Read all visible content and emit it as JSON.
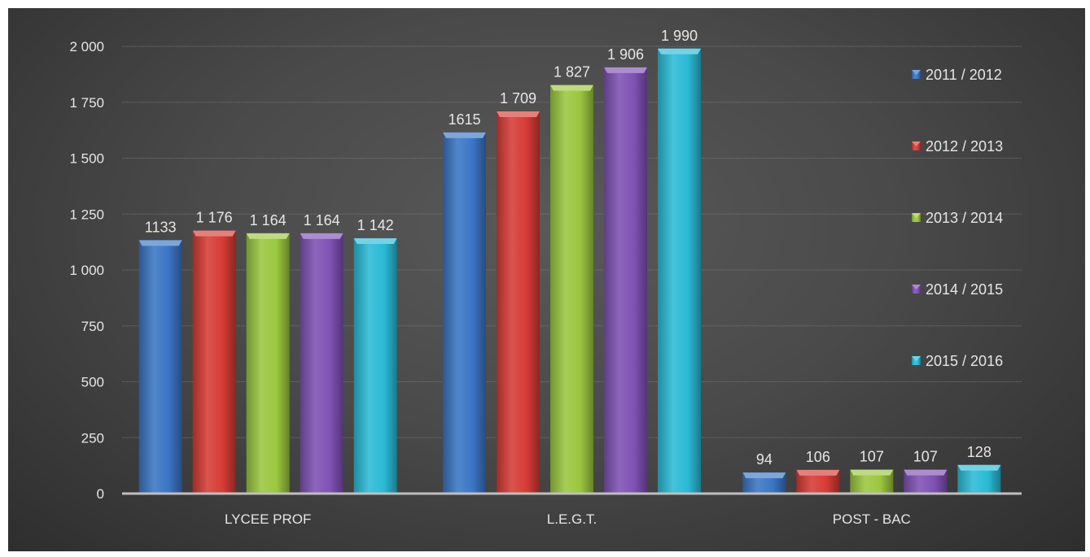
{
  "chart_data": {
    "type": "bar",
    "title": "",
    "xlabel": "",
    "ylabel": "",
    "categories": [
      "LYCEE PROF",
      "L.E.G.T.",
      "POST - BAC"
    ],
    "series": [
      {
        "name": "2011 / 2012",
        "color": "#3a75c4",
        "values": [
          1133,
          1615,
          94
        ],
        "value_labels": [
          "1133",
          "1615",
          "94"
        ]
      },
      {
        "name": "2012 / 2013",
        "color": "#d63b36",
        "values": [
          1176,
          1709,
          106
        ],
        "value_labels": [
          "1 176",
          "1 709",
          "106"
        ]
      },
      {
        "name": "2013 / 2014",
        "color": "#9bc63f",
        "values": [
          1164,
          1827,
          107
        ],
        "value_labels": [
          "1 164",
          "1 827",
          "107"
        ]
      },
      {
        "name": "2014 / 2015",
        "color": "#7f51b4",
        "values": [
          1164,
          1906,
          107
        ],
        "value_labels": [
          "1 164",
          "1 906",
          "107"
        ]
      },
      {
        "name": "2015 / 2016",
        "color": "#2bbad6",
        "values": [
          1142,
          1990,
          128
        ],
        "value_labels": [
          "1 142",
          "1 990",
          "128"
        ]
      }
    ],
    "ylim": [
      0,
      2000
    ],
    "yticks": [
      0,
      250,
      500,
      750,
      1000,
      1250,
      1500,
      1750,
      2000
    ],
    "ytick_labels": [
      "0",
      "250",
      "500",
      "750",
      "1 000",
      "1 250",
      "1 500",
      "1 750",
      "2 000"
    ],
    "grid": true,
    "legend_position": "right"
  }
}
